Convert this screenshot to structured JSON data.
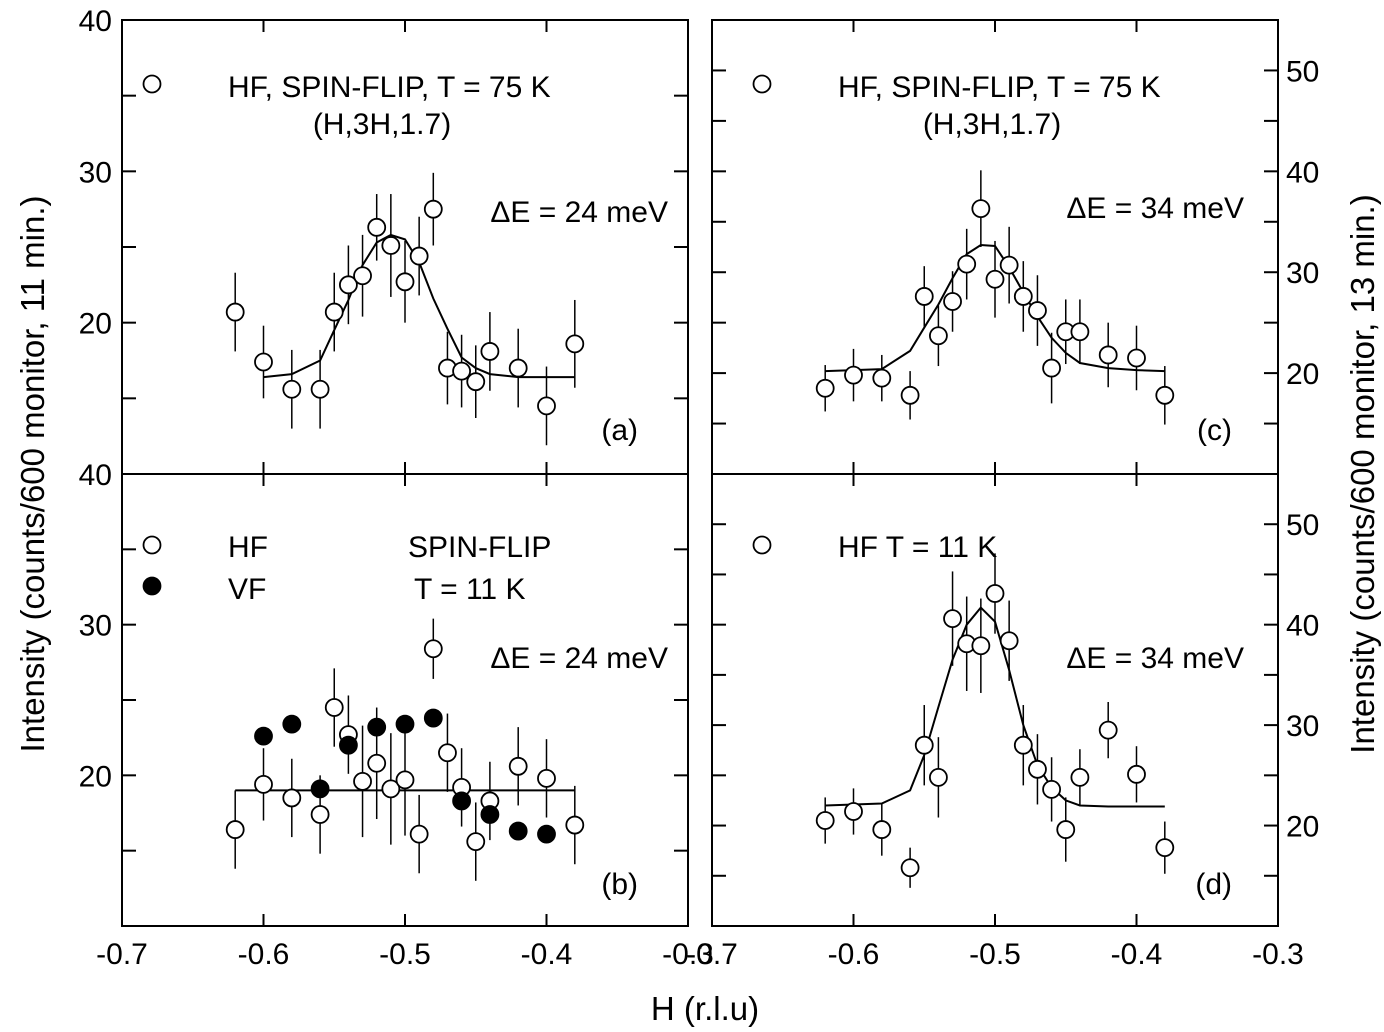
{
  "figure": {
    "xlabel": "H (r.l.u)",
    "ylabel_left": "Intensity (counts/600 monitor, 11 min.)",
    "ylabel_right": "Intensity (counts/600 monitor, 13 min.)"
  },
  "chart_data": [
    {
      "id": "a",
      "type": "scatter",
      "panel_label": "(a)",
      "legend": [
        {
          "marker": "open-circle",
          "text": "HF, SPIN-FLIP, T = 75 K"
        }
      ],
      "annotations": [
        "(H,3H,1.7)",
        "ΔE = 24 meV"
      ],
      "xlim": [
        -0.7,
        -0.3
      ],
      "xticks": [
        -0.7,
        -0.6,
        -0.5,
        -0.4,
        -0.3
      ],
      "xtick_labels": [],
      "ylim": [
        10,
        40
      ],
      "yticks": [
        20,
        30,
        40
      ],
      "ytick_labels": [
        "20",
        "30",
        "40"
      ],
      "y_axis_side": "left",
      "series": [
        {
          "marker": "open-circle",
          "x": [
            -0.62,
            -0.6,
            -0.58,
            -0.56,
            -0.55,
            -0.54,
            -0.53,
            -0.52,
            -0.51,
            -0.5,
            -0.49,
            -0.48,
            -0.47,
            -0.46,
            -0.45,
            -0.44,
            -0.42,
            -0.4,
            -0.38
          ],
          "y": [
            20.7,
            17.4,
            15.6,
            15.6,
            20.7,
            22.5,
            23.1,
            26.3,
            25.1,
            22.7,
            24.4,
            27.5,
            17.0,
            16.8,
            16.1,
            18.1,
            17.0,
            14.5,
            18.6
          ],
          "err": [
            2.6,
            2.4,
            2.6,
            2.6,
            2.6,
            2.6,
            2.7,
            2.2,
            3.4,
            2.7,
            2.6,
            2.4,
            2.4,
            2.4,
            2.4,
            2.6,
            2.6,
            2.6,
            2.9
          ]
        }
      ],
      "fit": {
        "x": [
          -0.6,
          -0.58,
          -0.56,
          -0.55,
          -0.54,
          -0.53,
          -0.52,
          -0.51,
          -0.5,
          -0.49,
          -0.48,
          -0.47,
          -0.46,
          -0.45,
          -0.44,
          -0.42,
          -0.4,
          -0.38
        ],
        "y": [
          16.4,
          16.6,
          17.5,
          19.5,
          21.5,
          23.8,
          25.3,
          25.8,
          25.5,
          24.0,
          21.6,
          19.6,
          17.7,
          17.0,
          16.6,
          16.4,
          16.4,
          16.4
        ]
      }
    },
    {
      "id": "c",
      "type": "scatter",
      "panel_label": "(c)",
      "legend": [
        {
          "marker": "open-circle",
          "text": "HF, SPIN-FLIP, T = 75 K"
        }
      ],
      "annotations": [
        "(H,3H,1.7)",
        "ΔE = 34 meV"
      ],
      "xlim": [
        -0.7,
        -0.3
      ],
      "xticks": [
        -0.7,
        -0.6,
        -0.5,
        -0.4,
        -0.3
      ],
      "xtick_labels": [],
      "ylim": [
        10,
        55
      ],
      "yticks": [
        20,
        30,
        40,
        50
      ],
      "ytick_labels": [
        "20",
        "30",
        "40",
        "50"
      ],
      "y_axis_side": "right",
      "series": [
        {
          "marker": "open-circle",
          "x": [
            -0.62,
            -0.6,
            -0.58,
            -0.56,
            -0.55,
            -0.54,
            -0.53,
            -0.52,
            -0.51,
            -0.5,
            -0.49,
            -0.48,
            -0.47,
            -0.46,
            -0.45,
            -0.44,
            -0.42,
            -0.4,
            -0.38
          ],
          "y": [
            18.5,
            19.8,
            19.5,
            17.8,
            27.6,
            23.7,
            27.1,
            30.8,
            36.3,
            29.3,
            30.7,
            27.6,
            26.2,
            20.5,
            24.1,
            24.1,
            21.8,
            21.5,
            17.8
          ],
          "err": [
            2.3,
            2.6,
            2.3,
            2.4,
            3.0,
            3.0,
            3.0,
            3.5,
            3.8,
            3.8,
            3.8,
            3.5,
            3.5,
            3.5,
            3.2,
            3.2,
            3.2,
            3.2,
            2.9
          ]
        }
      ],
      "fit": {
        "x": [
          -0.62,
          -0.58,
          -0.56,
          -0.55,
          -0.54,
          -0.53,
          -0.52,
          -0.51,
          -0.5,
          -0.49,
          -0.48,
          -0.47,
          -0.46,
          -0.45,
          -0.44,
          -0.42,
          -0.4,
          -0.38
        ],
        "y": [
          20.2,
          20.4,
          22.2,
          24.5,
          26.8,
          29.4,
          31.8,
          32.7,
          32.6,
          30.5,
          28.0,
          25.6,
          23.5,
          22.0,
          21.0,
          20.5,
          20.3,
          20.2
        ]
      }
    },
    {
      "id": "b",
      "type": "scatter",
      "panel_label": "(b)",
      "legend": [
        {
          "marker": "open-circle",
          "text": "HF"
        },
        {
          "marker": "filled-circle",
          "text": "VF"
        }
      ],
      "annotations": [
        "SPIN-FLIP",
        "T = 11 K",
        "ΔE = 24 meV"
      ],
      "xlim": [
        -0.7,
        -0.3
      ],
      "xticks": [
        -0.7,
        -0.6,
        -0.5,
        -0.4,
        -0.3
      ],
      "xtick_labels": [
        "-0.7",
        "-0.6",
        "-0.5",
        "-0.4",
        "-0.3"
      ],
      "ylim": [
        10,
        40
      ],
      "yticks": [
        20,
        30,
        40
      ],
      "ytick_labels": [
        "20",
        "30",
        "40"
      ],
      "y_axis_side": "left",
      "series": [
        {
          "marker": "open-circle",
          "x": [
            -0.62,
            -0.6,
            -0.58,
            -0.56,
            -0.55,
            -0.54,
            -0.53,
            -0.52,
            -0.51,
            -0.5,
            -0.49,
            -0.48,
            -0.47,
            -0.46,
            -0.45,
            -0.44,
            -0.42,
            -0.4,
            -0.38
          ],
          "y": [
            16.4,
            19.4,
            18.5,
            17.4,
            24.5,
            22.7,
            19.6,
            20.8,
            19.1,
            19.7,
            16.1,
            28.4,
            21.5,
            19.2,
            15.6,
            18.3,
            20.6,
            19.8,
            16.7
          ],
          "err": [
            2.6,
            2.4,
            2.6,
            2.6,
            2.6,
            2.6,
            3.7,
            3.7,
            3.7,
            3.7,
            2.6,
            2.0,
            2.6,
            2.6,
            2.6,
            2.6,
            2.6,
            2.6,
            2.6
          ]
        },
        {
          "marker": "filled-circle",
          "x": [
            -0.6,
            -0.58,
            -0.56,
            -0.54,
            -0.52,
            -0.5,
            -0.48,
            -0.46,
            -0.44,
            -0.42,
            -0.4
          ],
          "y": [
            22.6,
            23.4,
            19.1,
            22.0,
            23.2,
            23.4,
            23.8,
            18.3,
            17.4,
            16.3,
            16.1
          ],
          "err": [
            0,
            0,
            0,
            0,
            0,
            0,
            0,
            0,
            0,
            0,
            0
          ]
        }
      ],
      "fit": {
        "x": [
          -0.62,
          -0.38
        ],
        "y": [
          19.0,
          19.0
        ]
      }
    },
    {
      "id": "d",
      "type": "scatter",
      "panel_label": "(d)",
      "legend": [
        {
          "marker": "open-circle",
          "text": "HF  T = 11 K"
        }
      ],
      "annotations": [
        "ΔE = 34 meV"
      ],
      "xlim": [
        -0.7,
        -0.3
      ],
      "xticks": [
        -0.7,
        -0.6,
        -0.5,
        -0.4,
        -0.3
      ],
      "xtick_labels": [
        "-0.7",
        "-0.6",
        "-0.5",
        "-0.4",
        "-0.3"
      ],
      "ylim": [
        10,
        55
      ],
      "yticks": [
        20,
        30,
        40,
        50
      ],
      "ytick_labels": [
        "20",
        "30",
        "40",
        "50"
      ],
      "y_axis_side": "right",
      "series": [
        {
          "marker": "open-circle",
          "x": [
            -0.62,
            -0.6,
            -0.58,
            -0.56,
            -0.55,
            -0.54,
            -0.53,
            -0.52,
            -0.51,
            -0.5,
            -0.49,
            -0.48,
            -0.47,
            -0.46,
            -0.45,
            -0.44,
            -0.42,
            -0.4,
            -0.38
          ],
          "y": [
            20.5,
            21.4,
            19.6,
            15.8,
            28.0,
            24.8,
            40.6,
            38.1,
            37.9,
            43.1,
            38.4,
            28.0,
            25.6,
            23.6,
            19.6,
            24.8,
            29.5,
            25.1,
            17.8
          ],
          "err": [
            2.3,
            2.3,
            2.6,
            2.0,
            4.0,
            4.0,
            4.7,
            4.7,
            4.7,
            4.0,
            4.0,
            4.0,
            3.5,
            3.2,
            3.2,
            2.8,
            2.8,
            2.8,
            2.6
          ]
        }
      ],
      "fit": {
        "x": [
          -0.62,
          -0.58,
          -0.56,
          -0.55,
          -0.54,
          -0.53,
          -0.52,
          -0.51,
          -0.5,
          -0.49,
          -0.48,
          -0.47,
          -0.46,
          -0.45,
          -0.44,
          -0.42,
          -0.4,
          -0.38
        ],
        "y": [
          22.0,
          22.2,
          23.5,
          27.0,
          31.8,
          36.5,
          40.0,
          41.7,
          40.3,
          35.5,
          30.0,
          26.0,
          23.8,
          22.5,
          22.0,
          21.9,
          21.9,
          21.9
        ]
      }
    }
  ]
}
